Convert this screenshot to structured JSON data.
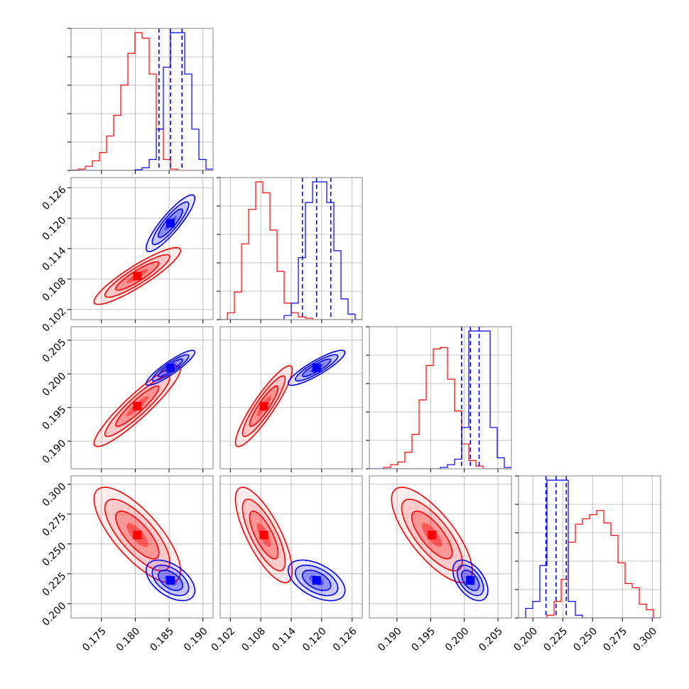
{
  "chart_data": {
    "type": "corner",
    "grid": true,
    "parameters": 4,
    "series": [
      {
        "color": "#ff0000",
        "means": [
          0.1803,
          0.1086,
          0.1952,
          0.2575
        ],
        "sigmas": [
          0.0032,
          0.0028,
          0.003,
          0.02
        ],
        "correlations": [
          [
            0,
            1,
            0.9
          ],
          [
            0,
            2,
            0.92
          ],
          [
            1,
            2,
            0.9
          ],
          [
            0,
            3,
            -0.75
          ],
          [
            1,
            3,
            -0.75
          ],
          [
            2,
            3,
            -0.75
          ]
        ]
      },
      {
        "color": "#0000ff",
        "means": [
          0.1852,
          0.119,
          0.2009,
          0.2195
        ],
        "sigmas": [
          0.0018,
          0.0028,
          0.0013,
          0.0085
        ],
        "correlations": [
          [
            0,
            1,
            0.88
          ],
          [
            0,
            2,
            0.9
          ],
          [
            1,
            2,
            0.88
          ],
          [
            0,
            3,
            -0.5
          ],
          [
            1,
            3,
            -0.5
          ],
          [
            2,
            3,
            -0.5
          ]
        ],
        "quantile_lines": [
          [
            0.1835,
            0.1852,
            0.1869
          ],
          [
            0.1162,
            0.119,
            0.1218
          ],
          [
            0.1996,
            0.2009,
            0.2022
          ],
          [
            0.211,
            0.2195,
            0.228
          ]
        ]
      }
    ],
    "axes": [
      {
        "range": [
          0.1705,
          0.1915
        ],
        "ticks": [
          "0.175",
          "0.180",
          "0.185",
          "0.190"
        ]
      },
      {
        "range": [
          0.1,
          0.128
        ],
        "ticks": [
          "0.102",
          "0.108",
          "0.114",
          "0.120",
          "0.126"
        ]
      },
      {
        "range": [
          0.1859,
          0.207
        ],
        "ticks": [
          "0.190",
          "0.195",
          "0.200",
          "0.205"
        ]
      },
      {
        "range": [
          0.188,
          0.307
        ],
        "ticks": [
          "0.200",
          "0.225",
          "0.250",
          "0.275",
          "0.300"
        ]
      }
    ],
    "histograms": [
      {
        "edges": [
          0.1705,
          0.1915
        ],
        "red": [
          0.3,
          1,
          3,
          7,
          13,
          25,
          40,
          62,
          85,
          100,
          96,
          70,
          30,
          8,
          1,
          0,
          0,
          0,
          0,
          0
        ],
        "blue": [
          0,
          0,
          0,
          0,
          0,
          0,
          0,
          0,
          0,
          0.5,
          2,
          8,
          30,
          75,
          100,
          100,
          70,
          30,
          8,
          1
        ]
      },
      {
        "edges": [
          0.1,
          0.128
        ],
        "red": [
          0,
          5,
          20,
          55,
          80,
          100,
          92,
          65,
          35,
          12,
          5,
          2,
          1,
          0,
          0,
          0,
          0,
          0,
          0,
          0
        ],
        "blue": [
          0,
          0,
          0,
          0,
          0,
          0,
          0,
          0,
          0,
          3,
          12,
          45,
          85,
          100,
          100,
          85,
          50,
          15,
          4,
          0
        ]
      },
      {
        "edges": [
          0.1859,
          0.207
        ],
        "red": [
          0,
          0,
          1,
          3,
          5,
          12,
          25,
          50,
          75,
          87,
          88,
          65,
          42,
          18,
          6,
          2,
          0,
          0,
          0,
          0
        ],
        "blue": [
          0,
          0,
          0,
          0,
          0,
          0,
          0,
          0,
          0,
          0,
          1,
          3,
          7,
          30,
          100,
          100,
          100,
          30,
          8,
          1
        ]
      },
      {
        "edges": [
          0.188,
          0.307
        ],
        "red": [
          0,
          0,
          0,
          0,
          2,
          12,
          28,
          55,
          68,
          72,
          75,
          78,
          69,
          60,
          40,
          25,
          22,
          10,
          6,
          0
        ],
        "blue": [
          0,
          7,
          12,
          38,
          100,
          100,
          100,
          12,
          2,
          0,
          0,
          0,
          0,
          0,
          0,
          0,
          0,
          0,
          0,
          0
        ]
      }
    ]
  }
}
